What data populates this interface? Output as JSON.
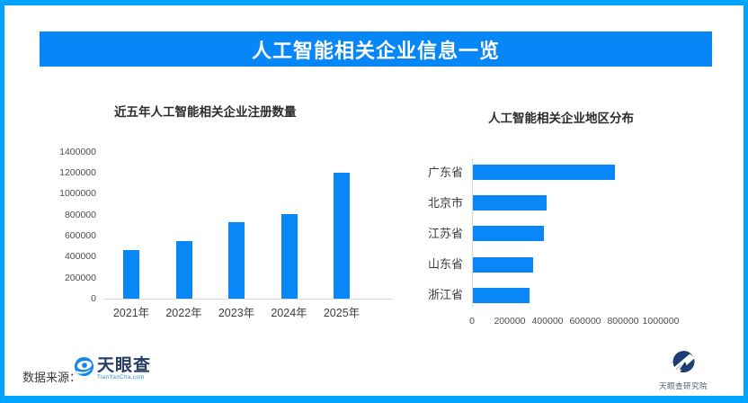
{
  "page": {
    "title": "人工智能相关企业信息一览",
    "footer": {
      "source_label": "数据来源：",
      "tianyancha_name": "天眼查",
      "tianyancha_domain": "TianYanCha.com",
      "research_institute": "天眼查研究院"
    }
  },
  "colors": {
    "frame": "#00A3FF",
    "banner": "#0787F7",
    "bar": "#0A87F7",
    "axis_line": "#D9D9D9",
    "brand_navy": "#233C5F"
  },
  "chart_data": [
    {
      "type": "bar",
      "orientation": "vertical",
      "title": "近五年人工智能相关企业注册数量",
      "categories": [
        "2021年",
        "2022年",
        "2023年",
        "2024年",
        "2025年"
      ],
      "values": [
        460000,
        550000,
        730000,
        810000,
        1200000
      ],
      "xlabel": "",
      "ylabel": "",
      "ylim": [
        0,
        1400000
      ],
      "yticks": [
        0,
        200000,
        400000,
        600000,
        800000,
        1000000,
        1200000,
        1400000
      ],
      "grid": false,
      "legend": false
    },
    {
      "type": "bar",
      "orientation": "horizontal",
      "title": "人工智能相关企业地区分布",
      "categories": [
        "广东省",
        "北京市",
        "江苏省",
        "山东省",
        "浙江省"
      ],
      "values": [
        750000,
        390000,
        375000,
        320000,
        300000
      ],
      "xlabel": "",
      "ylabel": "",
      "xlim": [
        0,
        1000000
      ],
      "xticks": [
        0,
        200000,
        400000,
        600000,
        800000,
        1000000
      ],
      "grid": false,
      "legend": false
    }
  ]
}
